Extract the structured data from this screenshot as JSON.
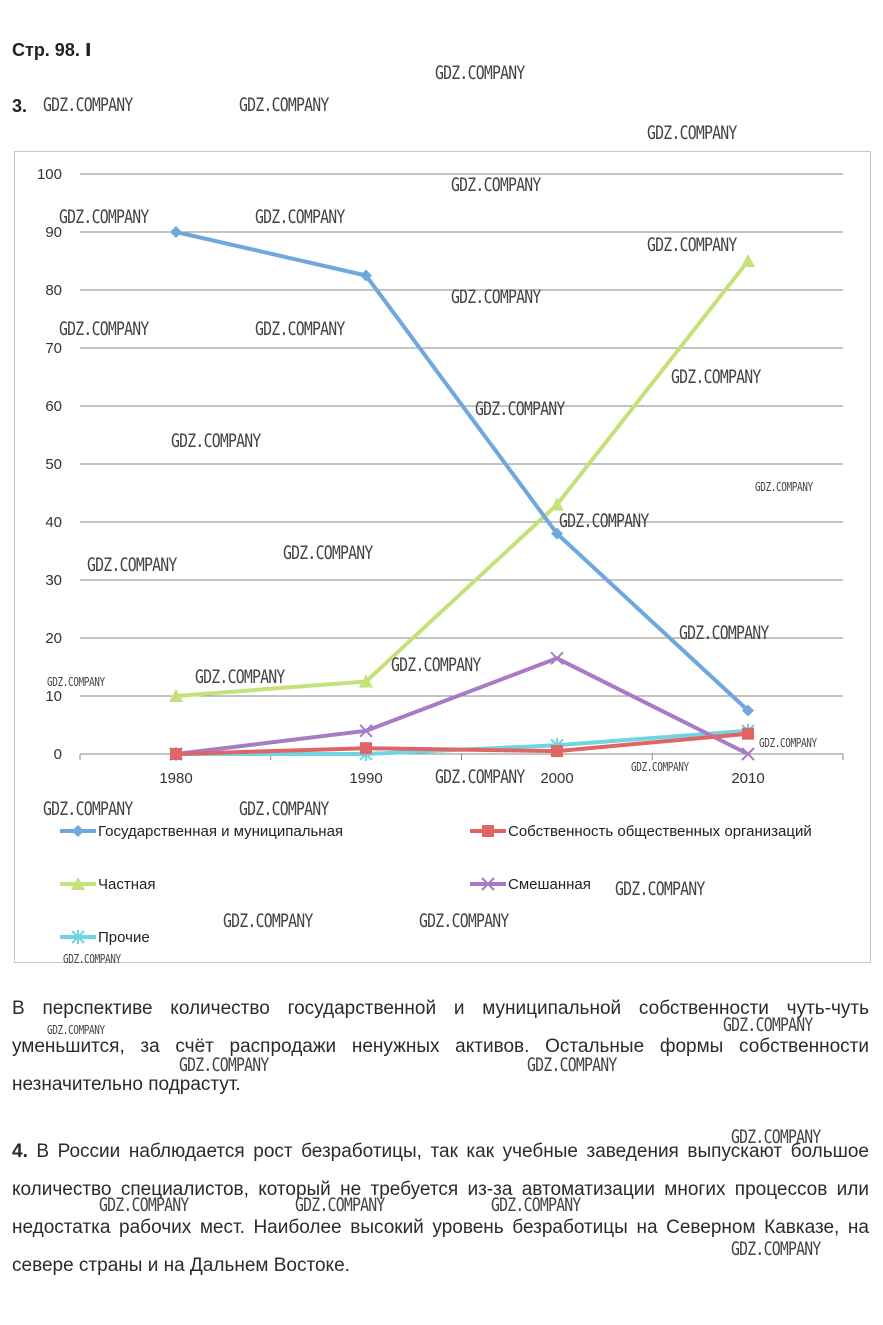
{
  "page": {
    "heading": "Стр. 98. Ⅰ",
    "task3_number": "3.",
    "watermark": "GDZ.COMPANY"
  },
  "chart_data": {
    "type": "line",
    "title": "",
    "xlabel": "",
    "ylabel": "",
    "categories": [
      "1980",
      "1990",
      "2000",
      "2010"
    ],
    "ylim": [
      0,
      100
    ],
    "yticks": [
      0,
      10,
      20,
      30,
      40,
      50,
      60,
      70,
      80,
      90,
      100
    ],
    "grid": true,
    "legend_position": "bottom",
    "series": [
      {
        "name": "Государственная и муниципальная",
        "values": [
          90,
          82.5,
          38,
          7.5
        ],
        "color": "#6fa8dc",
        "marker": "diamond"
      },
      {
        "name": "Собственность общественных организаций",
        "values": [
          0,
          1,
          0.5,
          3.5
        ],
        "color": "#e06666",
        "marker": "square"
      },
      {
        "name": "Частная",
        "values": [
          10,
          12.5,
          43,
          85
        ],
        "color": "#c5e17a",
        "marker": "triangle"
      },
      {
        "name": "Смешанная",
        "values": [
          0,
          4,
          16.5,
          0
        ],
        "color": "#a87cc4",
        "marker": "x"
      },
      {
        "name": "Прочие",
        "values": [
          0,
          0,
          1.5,
          4
        ],
        "color": "#6fd5e4",
        "marker": "star"
      }
    ]
  },
  "text": {
    "paragraph1": "В перспективе количество государственной и муниципальной собственности чуть-чуть уменьшится, за счёт распродажи ненужных активов. Остальные формы собственности незначительно подрастут.",
    "task4_number": "4.",
    "paragraph2": "В России наблюдается рост безработицы, так как учебные заведения выпускают большое количество специалистов, который не требуется из-за автоматизации многих процессов или недостатка рабочих мест. Наиболее высокий уровень безработицы на Северном Кавказе, на севере страны и на Дальнем Востоке."
  }
}
